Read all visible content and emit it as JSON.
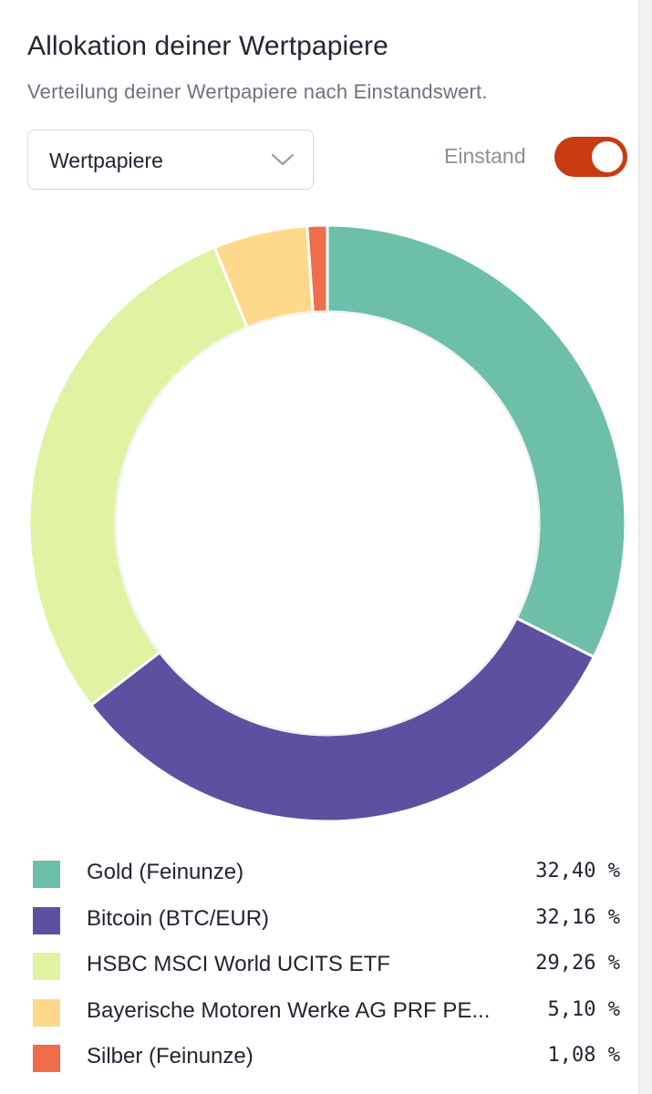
{
  "header": {
    "title": "Allokation deiner Wertpapiere",
    "subtitle": "Verteilung deiner Wertpapiere nach Einstandswert."
  },
  "controls": {
    "select_value": "Wertpapiere",
    "toggle_label": "Einstand",
    "toggle_on": true,
    "toggle_color": "#c93b12"
  },
  "chart_data": {
    "type": "pie",
    "donut": true,
    "legend_position": "bottom",
    "series": [
      {
        "name": "Gold (Feinunze)",
        "value": 32.4,
        "label": "32,40 %",
        "color": "#6dbfaa"
      },
      {
        "name": "Bitcoin (BTC/EUR)",
        "value": 32.16,
        "label": "32,16 %",
        "color": "#5e50a1"
      },
      {
        "name": "HSBC MSCI World UCITS ETF",
        "value": 29.26,
        "label": "29,26 %",
        "color": "#dff3a2"
      },
      {
        "name": "Bayerische Motoren Werke AG PRF PE...",
        "value": 5.1,
        "label": "5,10 %",
        "color": "#fed98b"
      },
      {
        "name": "Silber (Feinunze)",
        "value": 1.08,
        "label": "1,08 %",
        "color": "#ef6d4a"
      }
    ]
  }
}
